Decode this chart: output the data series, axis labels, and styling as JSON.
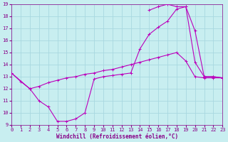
{
  "xlabel": "Windchill (Refroidissement éolien,°C)",
  "bg_color": "#c8eef0",
  "line_color": "#bb00bb",
  "grid_color": "#a8d8e0",
  "xlim": [
    0,
    23
  ],
  "ylim": [
    9,
    19
  ],
  "xticks": [
    0,
    1,
    2,
    3,
    4,
    5,
    6,
    7,
    8,
    9,
    10,
    11,
    12,
    13,
    14,
    15,
    16,
    17,
    18,
    19,
    20,
    21,
    22,
    23
  ],
  "yticks": [
    9,
    10,
    11,
    12,
    13,
    14,
    15,
    16,
    17,
    18,
    19
  ],
  "curve1_x": [
    0,
    1,
    2,
    3,
    4,
    5,
    6,
    7,
    8,
    9,
    10,
    11,
    12,
    13,
    14,
    15,
    16,
    17,
    18,
    19,
    20,
    21,
    22,
    23
  ],
  "curve1_y": [
    13.3,
    12.6,
    12.0,
    11.0,
    10.5,
    9.3,
    9.3,
    9.5,
    10.0,
    12.8,
    13.0,
    13.1,
    13.2,
    13.3,
    15.3,
    16.5,
    17.1,
    17.6,
    18.6,
    18.8,
    16.8,
    13.0,
    13.0,
    12.9
  ],
  "curve2_x": [
    0,
    2,
    3,
    4,
    5,
    6,
    7,
    8,
    9,
    10,
    11,
    12,
    13,
    14,
    15,
    16,
    17,
    18,
    19,
    20,
    21,
    22,
    23
  ],
  "curve2_y": [
    13.3,
    12.0,
    12.2,
    12.5,
    12.7,
    12.9,
    13.0,
    13.2,
    13.3,
    13.5,
    13.6,
    13.8,
    14.0,
    14.2,
    14.4,
    14.6,
    14.8,
    15.0,
    14.3,
    13.0,
    12.9,
    12.9,
    12.9
  ],
  "curve3_x": [
    15,
    16,
    17,
    18,
    19,
    20,
    21,
    22,
    23
  ],
  "curve3_y": [
    18.5,
    18.8,
    19.0,
    18.8,
    18.8,
    14.2,
    13.0,
    13.0,
    12.9
  ]
}
